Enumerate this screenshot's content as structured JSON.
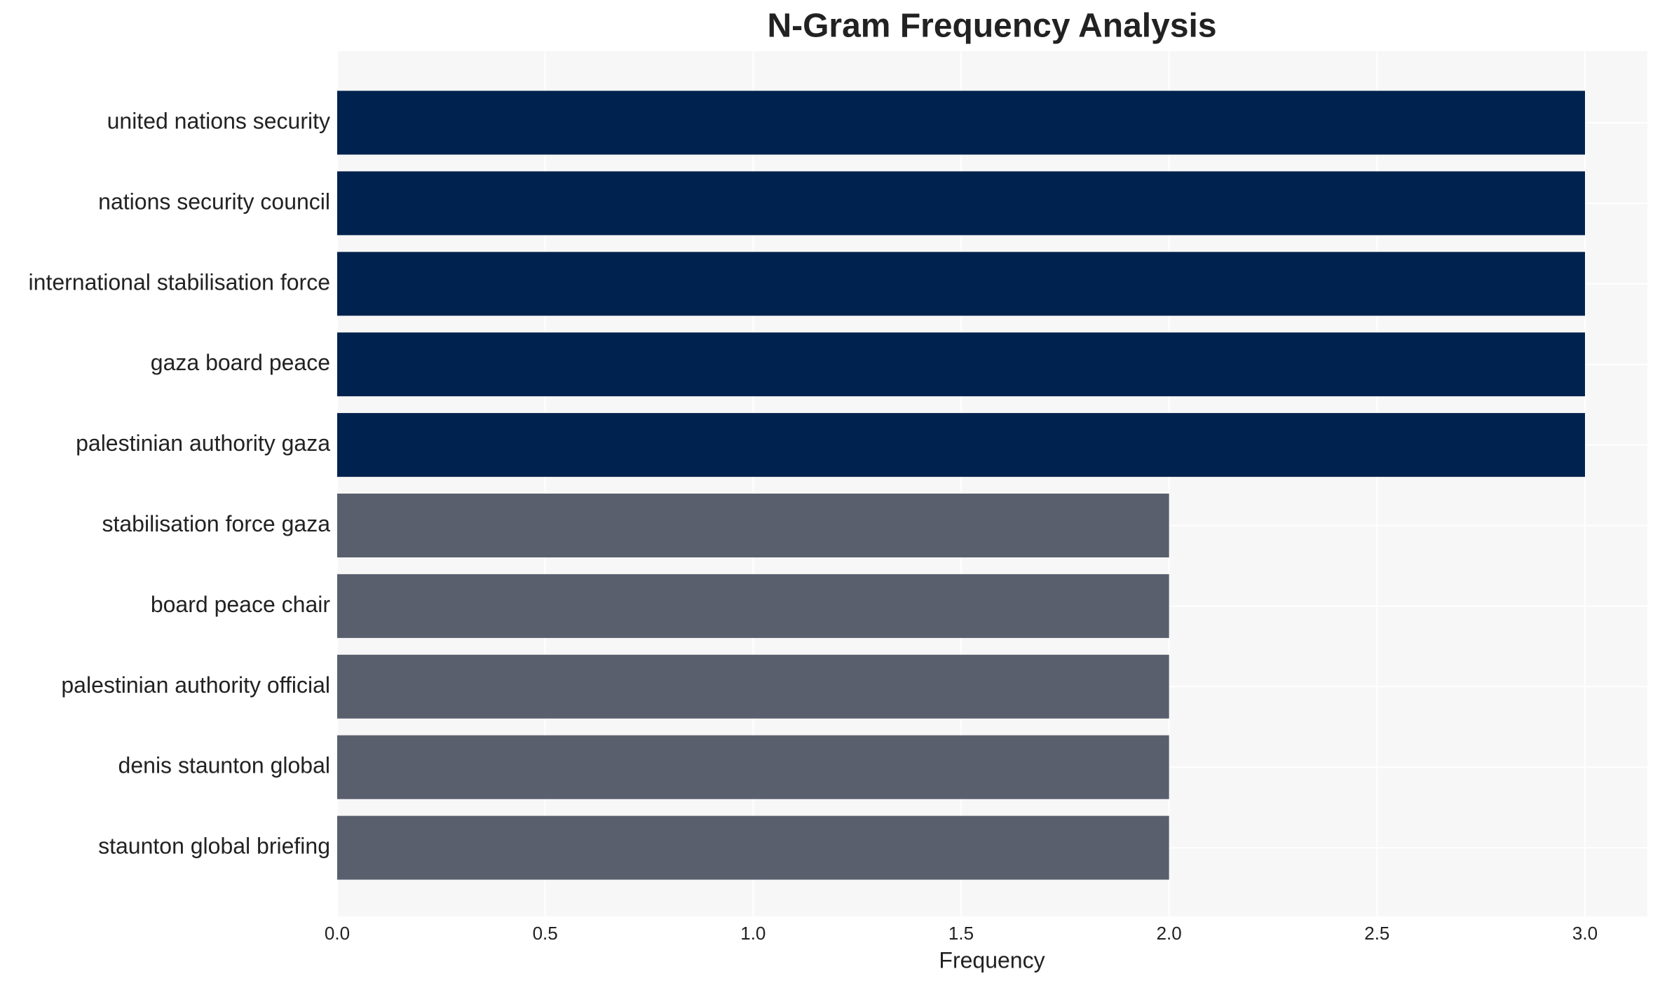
{
  "chart_data": {
    "type": "barh",
    "title": "N-Gram Frequency Analysis",
    "x_label": "Frequency",
    "categories": [
      "united nations security",
      "nations security council",
      "international stabilisation force",
      "gaza board peace",
      "palestinian authority gaza",
      "stabilisation force gaza",
      "board peace chair",
      "palestinian authority official",
      "denis staunton global",
      "staunton global briefing"
    ],
    "values": [
      3,
      3,
      3,
      3,
      3,
      2,
      2,
      2,
      2,
      2
    ],
    "colors": [
      "#00224e",
      "#00224e",
      "#00224e",
      "#00224e",
      "#00224e",
      "#5a5f6e",
      "#5a5f6e",
      "#5a5f6e",
      "#5a5f6e",
      "#5a5f6e"
    ],
    "xlim": [
      0,
      3.15
    ],
    "xticks": [
      {
        "value": 0,
        "label": "0.0"
      },
      0.5,
      {
        "value": 1,
        "label": "1.0"
      },
      1.5,
      {
        "value": 2,
        "label": "2.0"
      },
      2.5,
      {
        "value": 3,
        "label": "3.0"
      }
    ],
    "grid": true
  }
}
